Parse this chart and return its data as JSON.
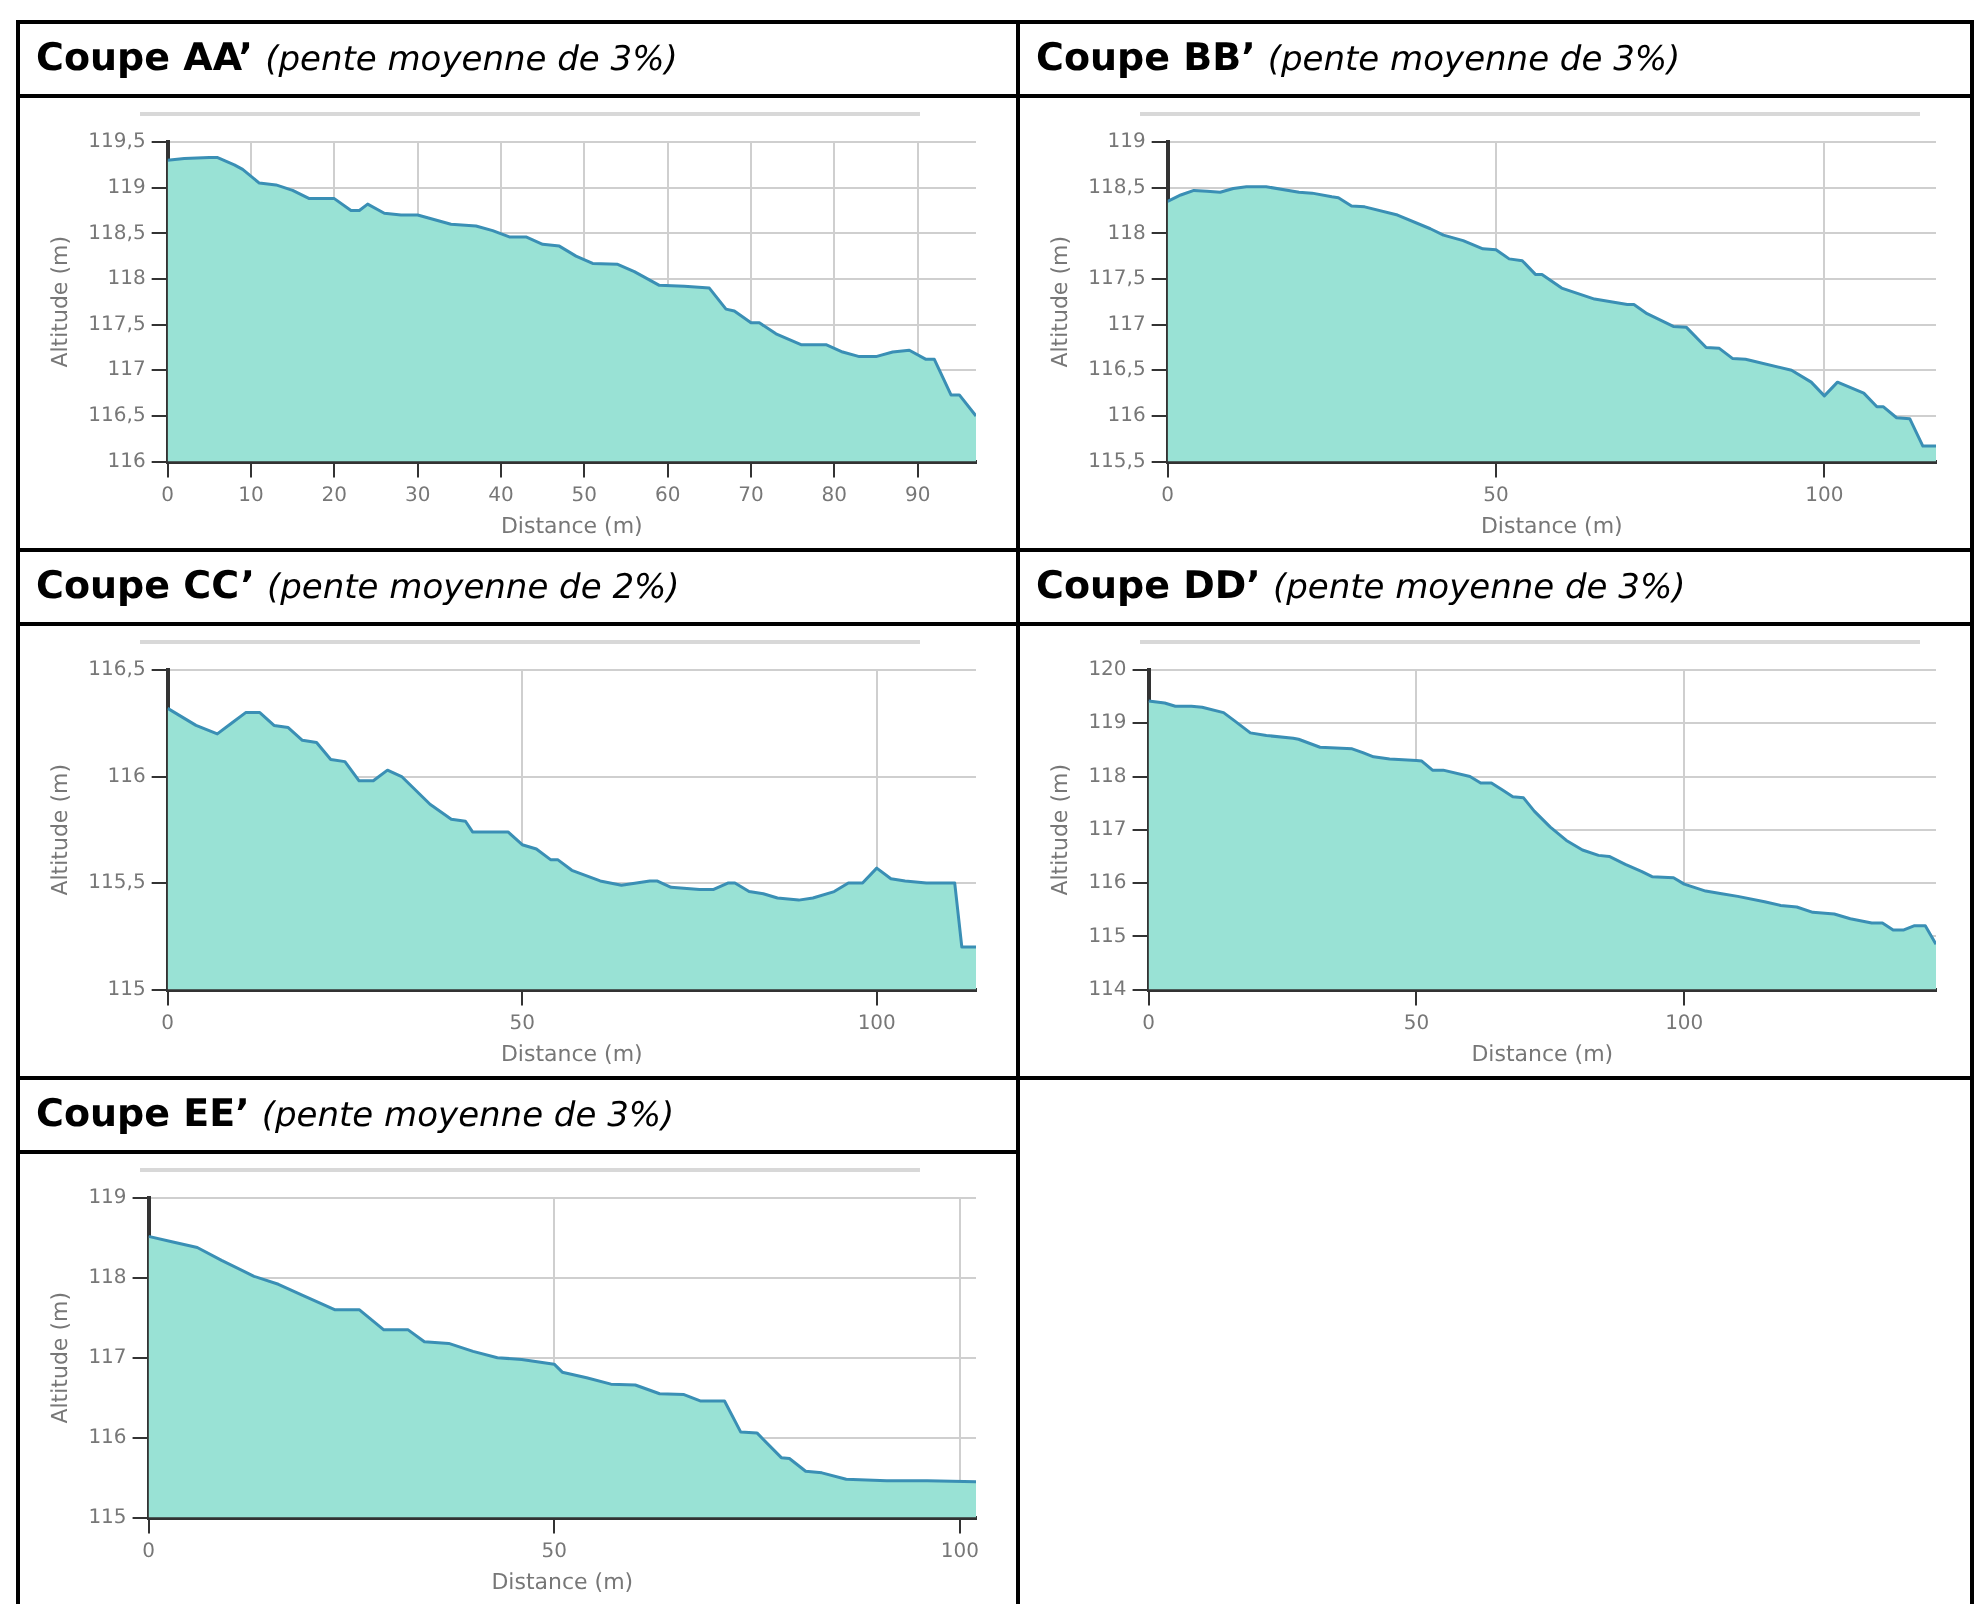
{
  "chart_data": [
    {
      "type": "area",
      "title": "Coupe AA’",
      "subtitle": "(pente moyenne de 3%)",
      "xlabel": "Distance (m)",
      "ylabel": "Altitude (m)",
      "grid": true,
      "xlim": [
        0,
        97
      ],
      "xticks": [
        0,
        10,
        20,
        30,
        40,
        50,
        60,
        70,
        80,
        90
      ],
      "ylim": [
        116,
        119.5
      ],
      "yticks": [
        116,
        {
          "value": 116.5,
          "label": "116,5"
        },
        117,
        {
          "value": 117.5,
          "label": "117,5"
        },
        118,
        {
          "value": 118.5,
          "label": "118,5"
        },
        119,
        {
          "value": 119.5,
          "label": "119,5"
        }
      ],
      "series": [
        {
          "color": "#99e2d5",
          "x": [
            0,
            2,
            5,
            6,
            8,
            9,
            11,
            13,
            15,
            17,
            20,
            22,
            23,
            24,
            26,
            28,
            30,
            34,
            37,
            39,
            41,
            43,
            45,
            47,
            49,
            51,
            54,
            56,
            59,
            62,
            65,
            67,
            68,
            70,
            71,
            73,
            76,
            79,
            81,
            83,
            85,
            87,
            89,
            91,
            92,
            94,
            95,
            97
          ],
          "values": [
            119.3,
            119.32,
            119.33,
            119.33,
            119.25,
            119.2,
            119.05,
            119.03,
            118.97,
            118.88,
            118.88,
            118.75,
            118.75,
            118.82,
            118.72,
            118.7,
            118.7,
            118.6,
            118.58,
            118.53,
            118.46,
            118.46,
            118.38,
            118.36,
            118.25,
            118.17,
            118.16,
            118.08,
            117.93,
            117.92,
            117.9,
            117.67,
            117.65,
            117.52,
            117.52,
            117.4,
            117.28,
            117.28,
            117.2,
            117.15,
            117.15,
            117.2,
            117.22,
            117.12,
            117.12,
            116.73,
            116.73,
            116.5
          ]
        }
      ]
    },
    {
      "type": "area",
      "title": "Coupe BB’",
      "subtitle": "(pente moyenne de 3%)",
      "xlabel": "Distance (m)",
      "ylabel": "Altitude (m)",
      "grid": true,
      "xlim": [
        0,
        117
      ],
      "xticks": [
        0,
        50,
        100
      ],
      "ylim": [
        115.5,
        119
      ],
      "yticks": [
        {
          "value": 115.5,
          "label": "115,5"
        },
        116,
        {
          "value": 116.5,
          "label": "116,5"
        },
        117,
        {
          "value": 117.5,
          "label": "117,5"
        },
        118,
        {
          "value": 118.5,
          "label": "118,5"
        },
        119
      ],
      "series": [
        {
          "color": "#99e2d5",
          "x": [
            0,
            2,
            4,
            6,
            8,
            10,
            12,
            15,
            20,
            22,
            25,
            26,
            28,
            30,
            35,
            40,
            42,
            45,
            48,
            50,
            52,
            54,
            56,
            57,
            60,
            65,
            70,
            71,
            73,
            77,
            79,
            82,
            84,
            86,
            88,
            95,
            98,
            100,
            102,
            106,
            108,
            109,
            111,
            113,
            115,
            117
          ],
          "values": [
            118.35,
            118.42,
            118.47,
            118.46,
            118.45,
            118.49,
            118.51,
            118.51,
            118.45,
            118.44,
            118.4,
            118.39,
            118.3,
            118.29,
            118.2,
            118.05,
            117.98,
            117.92,
            117.83,
            117.82,
            117.72,
            117.7,
            117.55,
            117.55,
            117.4,
            117.28,
            117.22,
            117.22,
            117.12,
            116.98,
            116.97,
            116.75,
            116.74,
            116.63,
            116.62,
            116.5,
            116.37,
            116.22,
            116.37,
            116.25,
            116.1,
            116.1,
            115.98,
            115.97,
            115.67,
            115.67
          ]
        }
      ]
    },
    {
      "type": "area",
      "title": "Coupe CC’",
      "subtitle": "(pente moyenne de 2%)",
      "xlabel": "Distance (m)",
      "ylabel": "Altitude (m)",
      "grid": true,
      "xlim": [
        0,
        114
      ],
      "xticks": [
        0,
        50,
        100
      ],
      "ylim": [
        115,
        116.5
      ],
      "yticks": [
        115,
        {
          "value": 115.5,
          "label": "115,5"
        },
        116,
        {
          "value": 116.5,
          "label": "116,5"
        }
      ],
      "series": [
        {
          "color": "#99e2d5",
          "x": [
            0,
            2,
            4,
            7,
            9,
            11,
            13,
            15,
            17,
            19,
            21,
            23,
            25,
            27,
            29,
            31,
            33,
            37,
            40,
            42,
            43,
            47,
            48,
            50,
            52,
            54,
            55,
            57,
            61,
            64,
            68,
            69,
            71,
            75,
            77,
            79,
            80,
            82,
            84,
            86,
            89,
            91,
            94,
            96,
            98,
            100,
            102,
            104,
            107,
            111,
            112,
            114
          ],
          "values": [
            116.32,
            116.28,
            116.24,
            116.2,
            116.25,
            116.3,
            116.3,
            116.24,
            116.23,
            116.17,
            116.16,
            116.08,
            116.07,
            115.98,
            115.98,
            116.03,
            116.0,
            115.87,
            115.8,
            115.79,
            115.74,
            115.74,
            115.74,
            115.68,
            115.66,
            115.61,
            115.61,
            115.56,
            115.51,
            115.49,
            115.51,
            115.51,
            115.48,
            115.47,
            115.47,
            115.5,
            115.5,
            115.46,
            115.45,
            115.43,
            115.42,
            115.43,
            115.46,
            115.5,
            115.5,
            115.57,
            115.52,
            115.51,
            115.5,
            115.5,
            115.2,
            115.2
          ]
        }
      ]
    },
    {
      "type": "area",
      "title": "Coupe DD’",
      "subtitle": "(pente moyenne de 3%)",
      "xlabel": "Distance (m)",
      "ylabel": "Altitude (m)",
      "grid": true,
      "xlim": [
        0,
        147
      ],
      "xticks": [
        0,
        50,
        100
      ],
      "ylim": [
        114,
        120
      ],
      "yticks": [
        114,
        115,
        116,
        117,
        118,
        119,
        120
      ],
      "series": [
        {
          "color": "#99e2d5",
          "x": [
            0,
            3,
            5,
            8,
            10,
            14,
            16,
            19,
            22,
            27,
            28,
            32,
            38,
            40,
            42,
            45,
            50,
            51,
            53,
            55,
            60,
            62,
            64,
            66,
            68,
            70,
            72,
            75,
            78,
            81,
            84,
            86,
            89,
            92,
            94,
            98,
            100,
            104,
            107,
            110,
            115,
            118,
            121,
            124,
            128,
            131,
            135,
            137,
            139,
            141,
            143,
            145,
            147
          ],
          "values": [
            119.42,
            119.38,
            119.32,
            119.32,
            119.3,
            119.2,
            119.05,
            118.82,
            118.77,
            118.72,
            118.7,
            118.55,
            118.52,
            118.45,
            118.37,
            118.33,
            118.3,
            118.29,
            118.12,
            118.12,
            118.0,
            117.88,
            117.88,
            117.75,
            117.62,
            117.6,
            117.35,
            117.05,
            116.8,
            116.62,
            116.52,
            116.5,
            116.35,
            116.22,
            116.12,
            116.1,
            115.98,
            115.85,
            115.8,
            115.75,
            115.65,
            115.58,
            115.55,
            115.45,
            115.42,
            115.33,
            115.25,
            115.25,
            115.12,
            115.12,
            115.2,
            115.2,
            114.85
          ]
        }
      ]
    },
    {
      "type": "area",
      "title": "Coupe EE’",
      "subtitle": "(pente moyenne de 3%)",
      "xlabel": "Distance (m)",
      "ylabel": "Altitude (m)",
      "grid": true,
      "xlim": [
        0,
        102
      ],
      "xticks": [
        0,
        50,
        100
      ],
      "ylim": [
        115,
        119
      ],
      "yticks": [
        115,
        116,
        117,
        118,
        119
      ],
      "series": [
        {
          "color": "#99e2d5",
          "x": [
            0,
            3,
            6,
            9,
            13,
            16,
            19,
            23,
            26,
            29,
            32,
            34,
            37,
            40,
            43,
            46,
            50,
            51,
            54,
            57,
            60,
            63,
            66,
            68,
            71,
            73,
            75,
            78,
            79,
            81,
            83,
            86,
            91,
            96,
            102
          ],
          "values": [
            118.52,
            118.45,
            118.38,
            118.22,
            118.02,
            117.92,
            117.78,
            117.6,
            117.6,
            117.35,
            117.35,
            117.2,
            117.18,
            117.08,
            117.0,
            116.98,
            116.92,
            116.82,
            116.75,
            116.67,
            116.66,
            116.55,
            116.54,
            116.46,
            116.46,
            116.07,
            116.06,
            115.75,
            115.74,
            115.58,
            115.56,
            115.48,
            115.46,
            115.46,
            115.45
          ]
        }
      ]
    }
  ]
}
